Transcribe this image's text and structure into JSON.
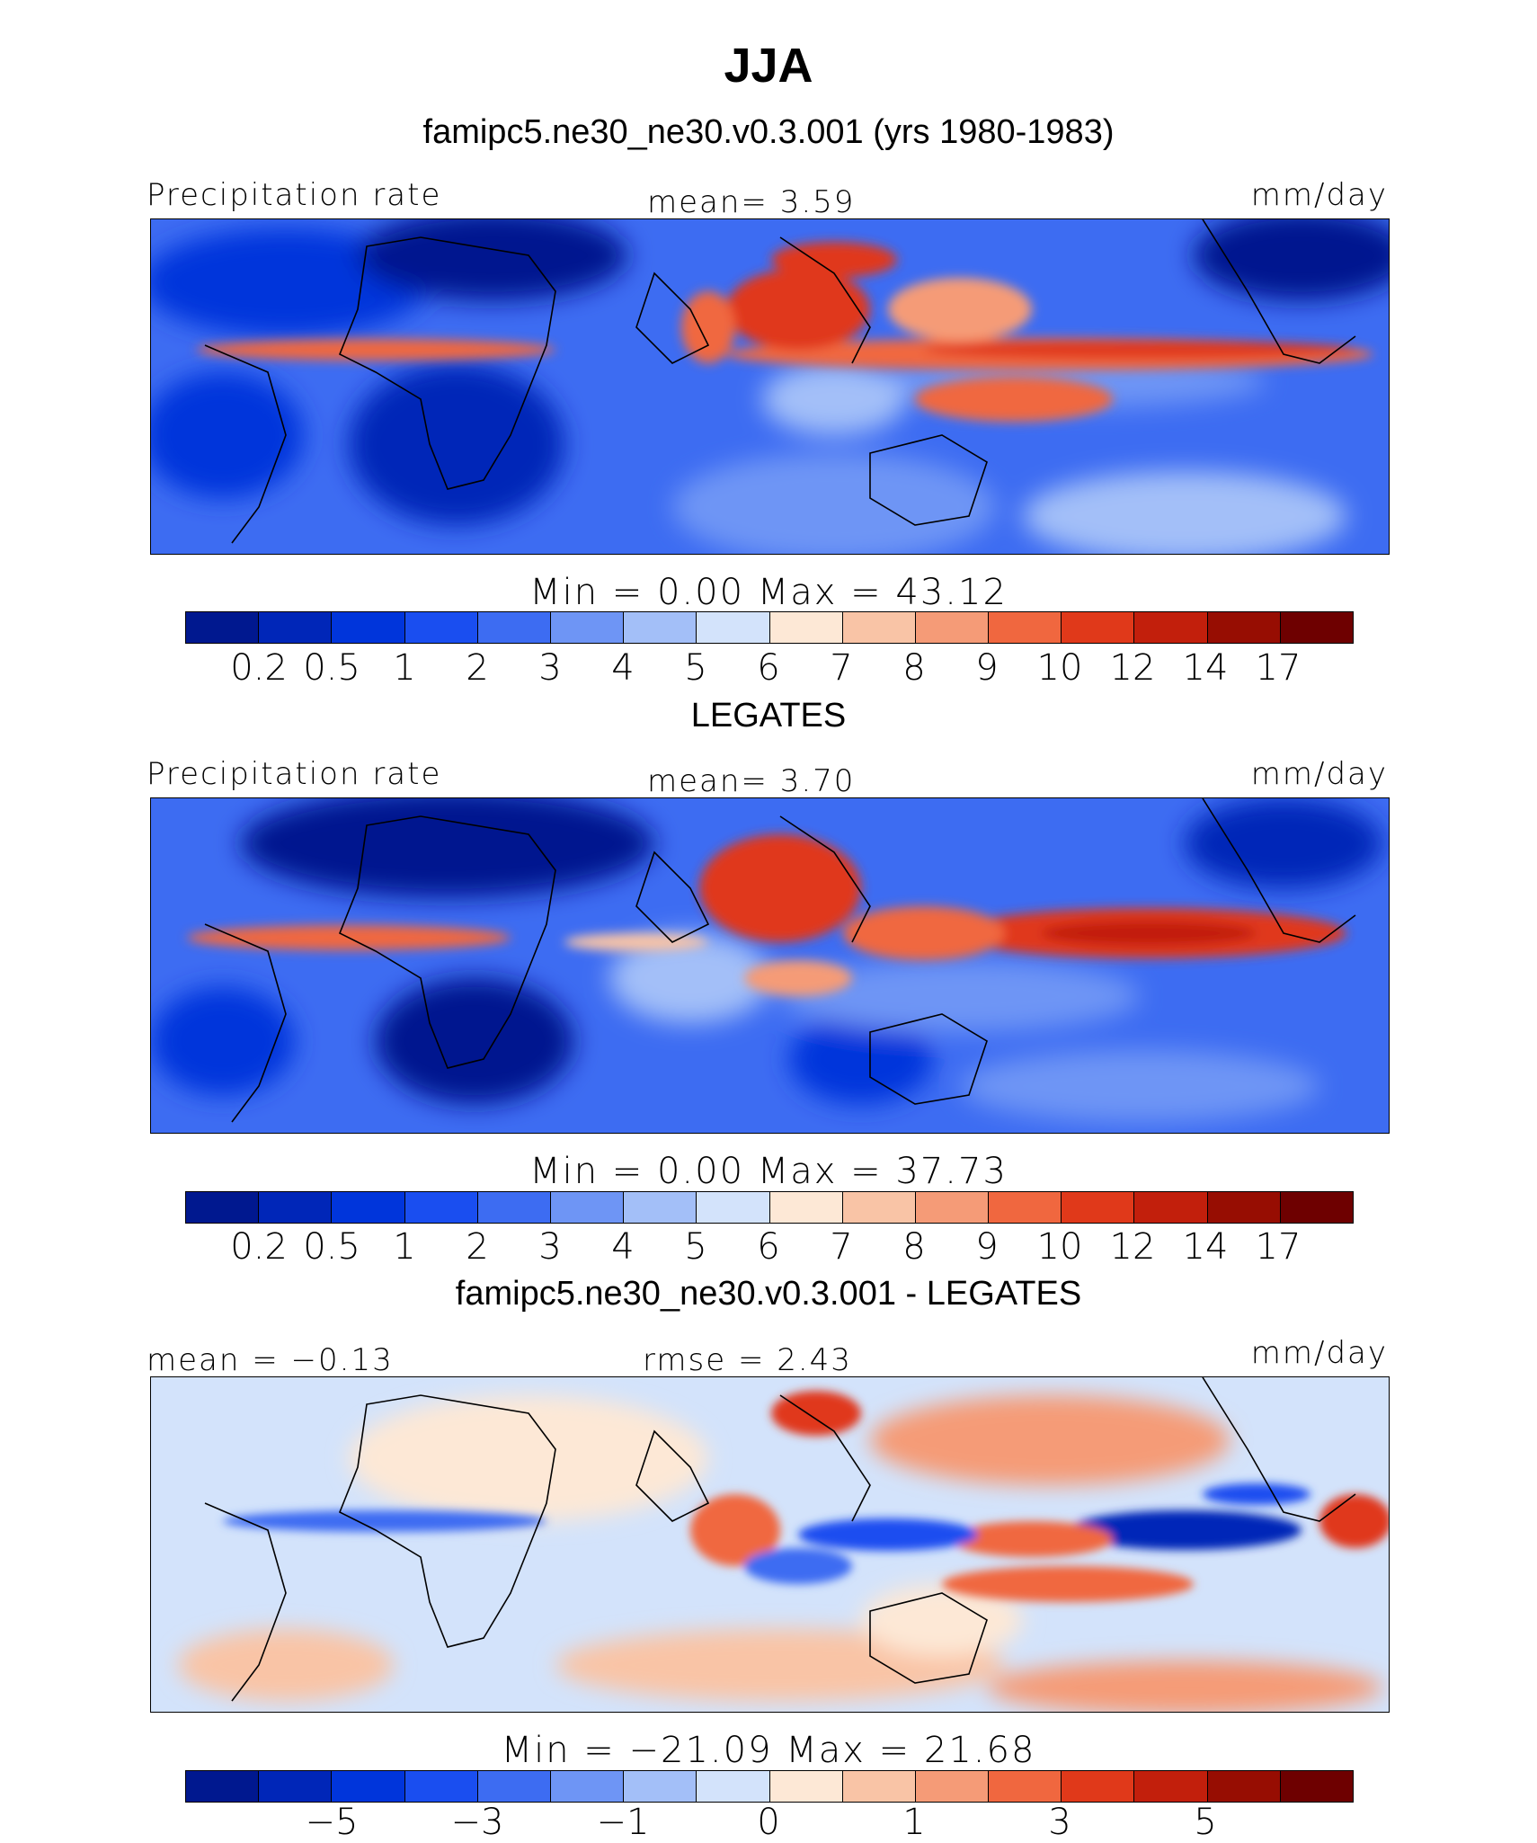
{
  "title": "JJA",
  "colors": {
    "abs_scale": [
      "#00188f",
      "#0026b8",
      "#0035db",
      "#1a4ef0",
      "#3d6cf2",
      "#6e95f5",
      "#a3bff8",
      "#d3e3fb",
      "#fde8d6",
      "#f9c4a6",
      "#f59b77",
      "#f0673f",
      "#e0391a",
      "#c21f0c",
      "#970d02",
      "#6e0000"
    ],
    "diff_scale": [
      "#00188f",
      "#0026b8",
      "#0035db",
      "#1a4ef0",
      "#3d6cf2",
      "#6e95f5",
      "#a3bff8",
      "#d3e3fb",
      "#fde8d6",
      "#f9c4a6",
      "#f59b77",
      "#f0673f",
      "#e0391a",
      "#c21f0c",
      "#970d02",
      "#6e0000"
    ]
  },
  "panels": [
    {
      "subtitle": "famipc5.ne30_ne30.v0.3.001 (yrs 1980-1983)",
      "left_label": "Precipitation rate",
      "center_label": "mean=    3.59",
      "units": "mm/day",
      "stats": "Min  =     0.00  Max  =    43.12",
      "ticks": [
        "0.2",
        "0.5",
        "1",
        "2",
        "3",
        "4",
        "5",
        "6",
        "7",
        "8",
        "9",
        "10",
        "12",
        "14",
        "17"
      ]
    },
    {
      "subtitle": "LEGATES",
      "left_label": "Precipitation rate",
      "center_label": "mean=    3.70",
      "units": "mm/day",
      "stats": "Min  =     0.00  Max  =    37.73",
      "ticks": [
        "0.2",
        "0.5",
        "1",
        "2",
        "3",
        "4",
        "5",
        "6",
        "7",
        "8",
        "9",
        "10",
        "12",
        "14",
        "17"
      ]
    },
    {
      "subtitle": "famipc5.ne30_ne30.v0.3.001 - LEGATES",
      "left_label": "mean =   −0.13",
      "center_label": "rmse =    2.43",
      "units": "mm/day",
      "stats": "Min  = −21.09  Max  =    21.68",
      "ticks": [
        "−5",
        "−3",
        "−1",
        "0",
        "1",
        "3",
        "5"
      ]
    }
  ]
}
